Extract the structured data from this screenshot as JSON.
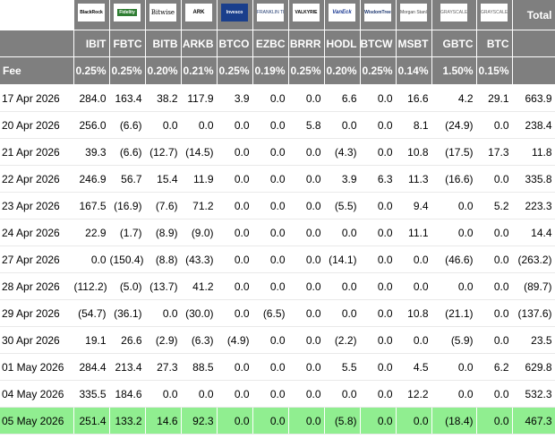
{
  "issuers": [
    {
      "key": "blackrock",
      "logo": "BlackRock"
    },
    {
      "key": "fidelity",
      "logo": "Fidelity"
    },
    {
      "key": "bitwise",
      "logo": "Bitwise"
    },
    {
      "key": "ark",
      "logo": "ARK"
    },
    {
      "key": "invesco",
      "logo": "Invesco"
    },
    {
      "key": "franklin",
      "logo": "FRANKLIN TEMPLETON"
    },
    {
      "key": "valkyrie",
      "logo": "VALKYRIE"
    },
    {
      "key": "vaneck",
      "logo": "VanEck"
    },
    {
      "key": "wisdom",
      "logo": "WisdomTree"
    },
    {
      "key": "morgan",
      "logo": "Morgan Stanley"
    },
    {
      "key": "grayscale1",
      "logo": "GRAYSCALE"
    },
    {
      "key": "grayscale2",
      "logo": "GRAYSCALE"
    }
  ],
  "total_label": "Total",
  "tickers": [
    "IBIT",
    "FBTC",
    "BITB",
    "ARKB",
    "BTCO",
    "EZBC",
    "BRRR",
    "HODL",
    "BTCW",
    "MSBT",
    "GBTC",
    "BTC"
  ],
  "fee_label": "Fee",
  "fees": [
    "0.25%",
    "0.25%",
    "0.20%",
    "0.21%",
    "0.25%",
    "0.19%",
    "0.25%",
    "0.20%",
    "0.25%",
    "0.14%",
    "1.50%",
    "0.15%"
  ],
  "rows": [
    {
      "date": "17 Apr 2026",
      "values": [
        "284.0",
        "163.4",
        "38.2",
        "117.9",
        "3.9",
        "0.0",
        "0.0",
        "6.6",
        "0.0",
        "16.6",
        "4.2",
        "29.1"
      ],
      "total": "663.9"
    },
    {
      "date": "20 Apr 2026",
      "values": [
        "256.0",
        "(6.6)",
        "0.0",
        "0.0",
        "0.0",
        "0.0",
        "5.8",
        "0.0",
        "0.0",
        "8.1",
        "(24.9)",
        "0.0"
      ],
      "total": "238.4"
    },
    {
      "date": "21 Apr 2026",
      "values": [
        "39.3",
        "(6.6)",
        "(12.7)",
        "(14.5)",
        "0.0",
        "0.0",
        "0.0",
        "(4.3)",
        "0.0",
        "10.8",
        "(17.5)",
        "17.3"
      ],
      "total": "11.8"
    },
    {
      "date": "22 Apr 2026",
      "values": [
        "246.9",
        "56.7",
        "15.4",
        "11.9",
        "0.0",
        "0.0",
        "0.0",
        "3.9",
        "6.3",
        "11.3",
        "(16.6)",
        "0.0"
      ],
      "total": "335.8"
    },
    {
      "date": "23 Apr 2026",
      "values": [
        "167.5",
        "(16.9)",
        "(7.6)",
        "71.2",
        "0.0",
        "0.0",
        "0.0",
        "(5.5)",
        "0.0",
        "9.4",
        "0.0",
        "5.2"
      ],
      "total": "223.3"
    },
    {
      "date": "24 Apr 2026",
      "values": [
        "22.9",
        "(1.7)",
        "(8.9)",
        "(9.0)",
        "0.0",
        "0.0",
        "0.0",
        "0.0",
        "0.0",
        "11.1",
        "0.0",
        "0.0"
      ],
      "total": "14.4"
    },
    {
      "date": "27 Apr 2026",
      "values": [
        "0.0",
        "(150.4)",
        "(8.8)",
        "(43.3)",
        "0.0",
        "0.0",
        "0.0",
        "(14.1)",
        "0.0",
        "0.0",
        "(46.6)",
        "0.0"
      ],
      "total": "(263.2)"
    },
    {
      "date": "28 Apr 2026",
      "values": [
        "(112.2)",
        "(5.0)",
        "(13.7)",
        "41.2",
        "0.0",
        "0.0",
        "0.0",
        "0.0",
        "0.0",
        "0.0",
        "0.0",
        "0.0"
      ],
      "total": "(89.7)"
    },
    {
      "date": "29 Apr 2026",
      "values": [
        "(54.7)",
        "(36.1)",
        "0.0",
        "(30.0)",
        "0.0",
        "(6.5)",
        "0.0",
        "0.0",
        "0.0",
        "10.8",
        "(21.1)",
        "0.0"
      ],
      "total": "(137.6)"
    },
    {
      "date": "30 Apr 2026",
      "values": [
        "19.1",
        "26.6",
        "(2.9)",
        "(6.3)",
        "(4.9)",
        "0.0",
        "0.0",
        "(2.2)",
        "0.0",
        "0.0",
        "(5.9)",
        "0.0"
      ],
      "total": "23.5"
    },
    {
      "date": "01 May 2026",
      "values": [
        "284.4",
        "213.4",
        "27.3",
        "88.5",
        "0.0",
        "0.0",
        "0.0",
        "5.5",
        "0.0",
        "4.5",
        "0.0",
        "6.2"
      ],
      "total": "629.8"
    },
    {
      "date": "04 May 2026",
      "values": [
        "335.5",
        "184.6",
        "0.0",
        "0.0",
        "0.0",
        "0.0",
        "0.0",
        "0.0",
        "0.0",
        "12.2",
        "0.0",
        "0.0"
      ],
      "total": "532.3"
    },
    {
      "date": "05 May 2026",
      "values": [
        "251.4",
        "133.2",
        "14.6",
        "92.3",
        "0.0",
        "0.0",
        "0.0",
        "(5.8)",
        "0.0",
        "0.0",
        "(18.4)",
        "0.0"
      ],
      "total": "467.3",
      "highlight": true
    }
  ],
  "colors": {
    "header_bg": "#7f7f7f",
    "negative": "#e60000",
    "highlight_row": "#90ee90"
  }
}
